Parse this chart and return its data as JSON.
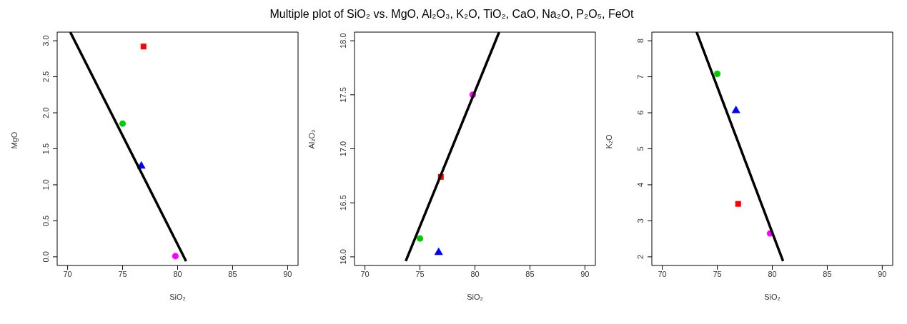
{
  "chart_data": [
    {
      "type": "scatter",
      "xlabel": "SiO₂",
      "ylabel": "MgO",
      "xlim": [
        69.05,
        90.95
      ],
      "xticks": [
        70,
        75,
        80,
        85,
        90
      ],
      "ylim": [
        -0.12,
        3.12
      ],
      "yticks": [
        {
          "value": 0,
          "label": "0.0"
        },
        {
          "value": 0.5,
          "label": "0.5"
        },
        {
          "value": 1,
          "label": "1.0"
        },
        {
          "value": 1.5,
          "label": "1.5"
        },
        {
          "value": 2,
          "label": "2.0"
        },
        {
          "value": 2.5,
          "label": "2.5"
        },
        {
          "value": 3,
          "label": "3.0"
        }
      ],
      "grid": false,
      "series": [
        {
          "x": [
            75.0
          ],
          "values": [
            1.85
          ],
          "color": "#00cc00",
          "marker": "circle"
        },
        {
          "x": [
            76.7
          ],
          "values": [
            1.26
          ],
          "color": "#0000ff",
          "marker": "triangle"
        },
        {
          "x": [
            76.9
          ],
          "values": [
            2.92
          ],
          "color": "#ff0000",
          "marker": "square"
        },
        {
          "x": [
            79.8
          ],
          "values": [
            0.01
          ],
          "color": "#ff00ff",
          "marker": "circle"
        },
        {
          "type": "line",
          "x": [
            70.24,
            80.77
          ],
          "values": [
            3.12,
            -0.06
          ],
          "color": "#000000",
          "marker": "none",
          "line_style": "solid"
        }
      ]
    },
    {
      "type": "scatter",
      "title": "Multiple plot of SiO₂ vs. MgO, Al₂O₃, K₂O, TiO₂, CaO, Na₂O, P₂O₅, FeOt",
      "xlabel": "SiO₂",
      "ylabel": "Al₂O₃",
      "xlim": [
        69.05,
        90.95
      ],
      "xticks": [
        70,
        75,
        80,
        85,
        90
      ],
      "ylim": [
        15.92,
        18.08
      ],
      "yticks": [
        {
          "value": 16,
          "label": "16.0"
        },
        {
          "value": 16.5,
          "label": "16.5"
        },
        {
          "value": 17,
          "label": "17.0"
        },
        {
          "value": 17.5,
          "label": "17.5"
        },
        {
          "value": 18,
          "label": "18.0"
        }
      ],
      "grid": false,
      "series": [
        {
          "x": [
            75.0
          ],
          "values": [
            16.17
          ],
          "color": "#00cc00",
          "marker": "circle"
        },
        {
          "x": [
            76.7
          ],
          "values": [
            16.04
          ],
          "color": "#0000ff",
          "marker": "triangle"
        },
        {
          "x": [
            76.9
          ],
          "values": [
            16.74
          ],
          "color": "#ff0000",
          "marker": "square"
        },
        {
          "x": [
            79.8
          ],
          "values": [
            17.5
          ],
          "color": "#ff00ff",
          "marker": "circle"
        },
        {
          "type": "line",
          "x": [
            73.71,
            82.2
          ],
          "values": [
            15.96,
            18.08
          ],
          "color": "#000000",
          "marker": "none",
          "line_style": "solid"
        }
      ]
    },
    {
      "type": "scatter",
      "xlabel": "SiO₂",
      "ylabel": "K₂O",
      "xlim": [
        69.05,
        90.95
      ],
      "xticks": [
        70,
        75,
        80,
        85,
        90
      ],
      "ylim": [
        1.76,
        8.24
      ],
      "yticks": [
        2,
        3,
        4,
        5,
        6,
        7,
        8
      ],
      "grid": false,
      "series": [
        {
          "x": [
            75.0
          ],
          "values": [
            7.08
          ],
          "color": "#00cc00",
          "marker": "circle"
        },
        {
          "x": [
            76.7
          ],
          "values": [
            6.06
          ],
          "color": "#0000ff",
          "marker": "triangle"
        },
        {
          "x": [
            76.9
          ],
          "values": [
            3.47
          ],
          "color": "#ff0000",
          "marker": "square"
        },
        {
          "x": [
            79.8
          ],
          "values": [
            2.65
          ],
          "color": "#ff00ff",
          "marker": "circle"
        },
        {
          "type": "line",
          "x": [
            73.12,
            80.98
          ],
          "values": [
            8.24,
            1.88
          ],
          "color": "#000000",
          "marker": "none",
          "line_style": "solid"
        }
      ]
    }
  ]
}
